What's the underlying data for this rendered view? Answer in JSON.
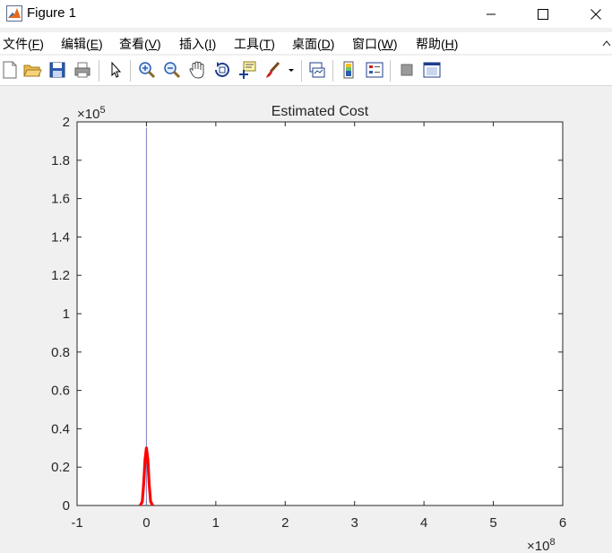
{
  "window": {
    "title": "Figure 1"
  },
  "menu": {
    "items": [
      {
        "label": "文件(",
        "key": "F",
        "tail": ")"
      },
      {
        "label": "编辑(",
        "key": "E",
        "tail": ")"
      },
      {
        "label": "查看(",
        "key": "V",
        "tail": ")"
      },
      {
        "label": "插入(",
        "key": "I",
        "tail": ")"
      },
      {
        "label": "工具(",
        "key": "T",
        "tail": ")"
      },
      {
        "label": "桌面(",
        "key": "D",
        "tail": ")"
      },
      {
        "label": "窗口(",
        "key": "W",
        "tail": ")"
      },
      {
        "label": "帮助(",
        "key": "H",
        "tail": ")"
      }
    ]
  },
  "toolbar": {
    "icons": [
      "new-figure-icon",
      "open-file-icon",
      "save-icon",
      "print-icon",
      "pointer-icon",
      "zoom-in-icon",
      "zoom-out-icon",
      "pan-hand-icon",
      "rotate-3d-icon",
      "data-cursor-icon",
      "brush-icon",
      "brush-dropdown-icon",
      "link-plot-icon",
      "colorbar-icon",
      "legend-icon",
      "hide-plot-tools-icon",
      "show-plot-tools-icon"
    ]
  },
  "chart_data": {
    "type": "line",
    "title": "Estimated Cost",
    "xlabel": "",
    "ylabel": "",
    "x_exponent_label": "×10",
    "x_exponent": "8",
    "y_exponent_label": "×10",
    "y_exponent": "5",
    "xlim": [
      -1,
      6
    ],
    "ylim": [
      0,
      2
    ],
    "x_ticks": [
      "-1",
      "0",
      "1",
      "2",
      "3",
      "4",
      "5",
      "6"
    ],
    "y_ticks": [
      "0",
      "0.2",
      "0.4",
      "0.6",
      "0.8",
      "1",
      "1.2",
      "1.4",
      "1.6",
      "1.8",
      "2"
    ],
    "grid": false,
    "series": [
      {
        "color": "#7f7fbf",
        "line_width": "thin",
        "x": [
          0,
          0
        ],
        "y": [
          0,
          1.97
        ]
      },
      {
        "color": "#ff0000",
        "line_width": "thick",
        "x": [
          -0.09,
          -0.06,
          -0.04,
          -0.02,
          0,
          0.02,
          0.04,
          0.06,
          0.09
        ],
        "y": [
          0,
          0.02,
          0.11,
          0.24,
          0.3,
          0.24,
          0.11,
          0.02,
          0
        ]
      }
    ]
  }
}
